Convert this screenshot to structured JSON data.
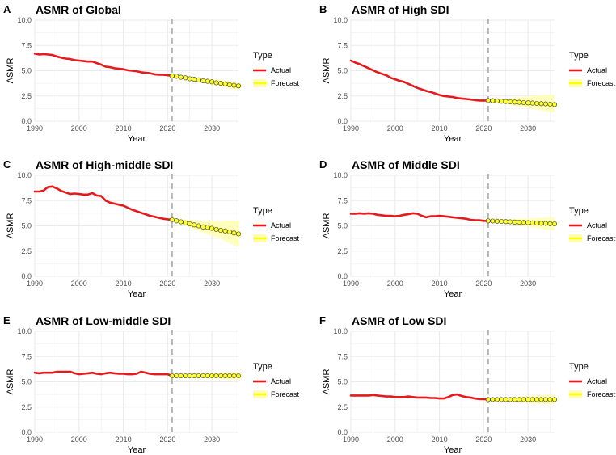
{
  "chart_data": [
    {
      "letter": "A",
      "title": "ASMR of Global",
      "type": "line",
      "xlabel": "Year",
      "ylabel": "ASMR",
      "xlim": [
        1990,
        2036
      ],
      "ylim": [
        0,
        10
      ],
      "xticks": [
        1990,
        2000,
        2010,
        2020,
        2030
      ],
      "yticks": [
        "0.0",
        "2.5",
        "5.0",
        "7.5",
        "10.0"
      ],
      "cutoff_year": 2021,
      "legend_title": "Type",
      "legend": [
        "Actual",
        "Forecast"
      ],
      "actual": {
        "x": [
          1990,
          1991,
          1992,
          1993,
          1994,
          1995,
          1996,
          1997,
          1998,
          1999,
          2000,
          2001,
          2002,
          2003,
          2004,
          2005,
          2006,
          2007,
          2008,
          2009,
          2010,
          2011,
          2012,
          2013,
          2014,
          2015,
          2016,
          2017,
          2018,
          2019,
          2020,
          2021
        ],
        "y": [
          6.7,
          6.6,
          6.65,
          6.6,
          6.55,
          6.4,
          6.3,
          6.2,
          6.15,
          6.05,
          6.0,
          5.95,
          5.9,
          5.9,
          5.75,
          5.6,
          5.4,
          5.35,
          5.25,
          5.2,
          5.15,
          5.05,
          5.0,
          4.95,
          4.85,
          4.8,
          4.75,
          4.65,
          4.6,
          4.6,
          4.55,
          4.5
        ]
      },
      "forecast": {
        "x": [
          2021,
          2022,
          2023,
          2024,
          2025,
          2026,
          2027,
          2028,
          2029,
          2030,
          2031,
          2032,
          2033,
          2034,
          2035,
          2036
        ],
        "y": [
          4.5,
          4.45,
          4.35,
          4.3,
          4.2,
          4.15,
          4.1,
          4.0,
          3.95,
          3.9,
          3.8,
          3.75,
          3.7,
          3.6,
          3.55,
          3.5
        ],
        "lower": [
          4.45,
          4.35,
          4.25,
          4.15,
          4.05,
          3.95,
          3.9,
          3.8,
          3.7,
          3.6,
          3.5,
          3.45,
          3.35,
          3.25,
          3.15,
          3.1
        ],
        "upper": [
          4.55,
          4.55,
          4.5,
          4.45,
          4.4,
          4.35,
          4.3,
          4.25,
          4.2,
          4.15,
          4.1,
          4.05,
          4.0,
          3.95,
          3.9,
          3.85
        ]
      }
    },
    {
      "letter": "B",
      "title": "ASMR of High SDI",
      "type": "line",
      "xlabel": "Year",
      "ylabel": "ASMR",
      "xlim": [
        1990,
        2036
      ],
      "ylim": [
        0,
        10
      ],
      "xticks": [
        1990,
        2000,
        2010,
        2020,
        2030
      ],
      "yticks": [
        "0.0",
        "2.5",
        "5.0",
        "7.5",
        "10.0"
      ],
      "cutoff_year": 2021,
      "legend_title": "Type",
      "legend": [
        "Actual",
        "Forecast"
      ],
      "actual": {
        "x": [
          1990,
          1991,
          1992,
          1993,
          1994,
          1995,
          1996,
          1997,
          1998,
          1999,
          2000,
          2001,
          2002,
          2003,
          2004,
          2005,
          2006,
          2007,
          2008,
          2009,
          2010,
          2011,
          2012,
          2013,
          2014,
          2015,
          2016,
          2017,
          2018,
          2019,
          2020,
          2021
        ],
        "y": [
          6.0,
          5.8,
          5.65,
          5.45,
          5.25,
          5.05,
          4.85,
          4.7,
          4.55,
          4.3,
          4.15,
          4.0,
          3.9,
          3.7,
          3.5,
          3.3,
          3.15,
          3.0,
          2.9,
          2.75,
          2.6,
          2.5,
          2.45,
          2.4,
          2.3,
          2.25,
          2.2,
          2.15,
          2.1,
          2.05,
          2.05,
          2.05
        ]
      },
      "forecast": {
        "x": [
          2021,
          2022,
          2023,
          2024,
          2025,
          2026,
          2027,
          2028,
          2029,
          2030,
          2031,
          2032,
          2033,
          2034,
          2035,
          2036
        ],
        "y": [
          2.05,
          2.03,
          2.0,
          1.98,
          1.95,
          1.92,
          1.9,
          1.87,
          1.84,
          1.82,
          1.79,
          1.76,
          1.74,
          1.71,
          1.68,
          1.65
        ],
        "lower": [
          2.0,
          1.9,
          1.85,
          1.75,
          1.68,
          1.6,
          1.52,
          1.45,
          1.38,
          1.3,
          1.22,
          1.15,
          1.08,
          1.0,
          0.92,
          0.85
        ],
        "upper": [
          2.1,
          2.15,
          2.2,
          2.22,
          2.25,
          2.3,
          2.35,
          2.38,
          2.42,
          2.46,
          2.5,
          2.53,
          2.57,
          2.6,
          2.64,
          2.68
        ]
      }
    },
    {
      "letter": "C",
      "title": "ASMR of High-middle SDI",
      "type": "line",
      "xlabel": "Year",
      "ylabel": "ASMR",
      "xlim": [
        1990,
        2036
      ],
      "ylim": [
        0,
        10
      ],
      "xticks": [
        1990,
        2000,
        2010,
        2020,
        2030
      ],
      "yticks": [
        "0.0",
        "2.5",
        "5.0",
        "7.5",
        "10.0"
      ],
      "cutoff_year": 2021,
      "legend_title": "Type",
      "legend": [
        "Actual",
        "Forecast"
      ],
      "actual": {
        "x": [
          1990,
          1991,
          1992,
          1993,
          1994,
          1995,
          1996,
          1997,
          1998,
          1999,
          2000,
          2001,
          2002,
          2003,
          2004,
          2005,
          2006,
          2007,
          2008,
          2009,
          2010,
          2011,
          2012,
          2013,
          2014,
          2015,
          2016,
          2017,
          2018,
          2019,
          2020,
          2021
        ],
        "y": [
          8.4,
          8.4,
          8.5,
          8.85,
          8.9,
          8.7,
          8.45,
          8.3,
          8.15,
          8.2,
          8.15,
          8.1,
          8.1,
          8.25,
          8.0,
          7.95,
          7.5,
          7.3,
          7.2,
          7.1,
          7.0,
          6.8,
          6.6,
          6.45,
          6.3,
          6.15,
          6.0,
          5.9,
          5.8,
          5.7,
          5.65,
          5.6
        ]
      },
      "forecast": {
        "x": [
          2021,
          2022,
          2023,
          2024,
          2025,
          2026,
          2027,
          2028,
          2029,
          2030,
          2031,
          2032,
          2033,
          2034,
          2035,
          2036
        ],
        "y": [
          5.6,
          5.5,
          5.4,
          5.3,
          5.2,
          5.1,
          5.0,
          4.9,
          4.85,
          4.75,
          4.65,
          4.55,
          4.5,
          4.4,
          4.3,
          4.2
        ],
        "lower": [
          5.5,
          5.3,
          5.15,
          5.0,
          4.8,
          4.65,
          4.5,
          4.35,
          4.2,
          4.0,
          3.85,
          3.7,
          3.5,
          3.3,
          3.1,
          2.9
        ],
        "upper": [
          5.7,
          5.7,
          5.65,
          5.6,
          5.6,
          5.55,
          5.5,
          5.5,
          5.5,
          5.5,
          5.45,
          5.45,
          5.5,
          5.5,
          5.5,
          5.55
        ]
      }
    },
    {
      "letter": "D",
      "title": "ASMR of Middle SDI",
      "type": "line",
      "xlabel": "Year",
      "ylabel": "ASMR",
      "xlim": [
        1990,
        2036
      ],
      "ylim": [
        0,
        10
      ],
      "xticks": [
        1990,
        2000,
        2010,
        2020,
        2030
      ],
      "yticks": [
        "0.0",
        "2.5",
        "5.0",
        "7.5",
        "10.0"
      ],
      "cutoff_year": 2021,
      "legend_title": "Type",
      "legend": [
        "Actual",
        "Forecast"
      ],
      "actual": {
        "x": [
          1990,
          1991,
          1992,
          1993,
          1994,
          1995,
          1996,
          1997,
          1998,
          1999,
          2000,
          2001,
          2002,
          2003,
          2004,
          2005,
          2006,
          2007,
          2008,
          2009,
          2010,
          2011,
          2012,
          2013,
          2014,
          2015,
          2016,
          2017,
          2018,
          2019,
          2020,
          2021
        ],
        "y": [
          6.2,
          6.2,
          6.25,
          6.2,
          6.25,
          6.2,
          6.1,
          6.05,
          6.0,
          6.0,
          5.95,
          6.0,
          6.1,
          6.15,
          6.25,
          6.2,
          6.0,
          5.85,
          5.95,
          5.95,
          6.0,
          5.95,
          5.9,
          5.85,
          5.8,
          5.75,
          5.7,
          5.6,
          5.55,
          5.55,
          5.5,
          5.5
        ]
      },
      "forecast": {
        "x": [
          2021,
          2022,
          2023,
          2024,
          2025,
          2026,
          2027,
          2028,
          2029,
          2030,
          2031,
          2032,
          2033,
          2034,
          2035,
          2036
        ],
        "y": [
          5.5,
          5.48,
          5.46,
          5.44,
          5.42,
          5.4,
          5.38,
          5.36,
          5.34,
          5.32,
          5.3,
          5.28,
          5.26,
          5.24,
          5.22,
          5.2
        ],
        "lower": [
          5.45,
          5.38,
          5.32,
          5.26,
          5.2,
          5.14,
          5.08,
          5.02,
          4.96,
          4.9,
          4.84,
          4.78,
          4.72,
          4.66,
          4.6,
          4.55
        ],
        "upper": [
          5.55,
          5.58,
          5.6,
          5.62,
          5.64,
          5.66,
          5.68,
          5.7,
          5.72,
          5.74,
          5.76,
          5.78,
          5.8,
          5.82,
          5.84,
          5.85
        ]
      }
    },
    {
      "letter": "E",
      "title": "ASMR of Low-middle SDI",
      "type": "line",
      "xlabel": "Year",
      "ylabel": "ASMR",
      "xlim": [
        1990,
        2036
      ],
      "ylim": [
        0,
        10
      ],
      "xticks": [
        1990,
        2000,
        2010,
        2020,
        2030
      ],
      "yticks": [
        "0.0",
        "2.5",
        "5.0",
        "7.5",
        "10.0"
      ],
      "cutoff_year": 2021,
      "legend_title": "Type",
      "legend": [
        "Actual",
        "Forecast"
      ],
      "actual": {
        "x": [
          1990,
          1991,
          1992,
          1993,
          1994,
          1995,
          1996,
          1997,
          1998,
          1999,
          2000,
          2001,
          2002,
          2003,
          2004,
          2005,
          2006,
          2007,
          2008,
          2009,
          2010,
          2011,
          2012,
          2013,
          2014,
          2015,
          2016,
          2017,
          2018,
          2019,
          2020,
          2021
        ],
        "y": [
          5.9,
          5.85,
          5.9,
          5.9,
          5.9,
          6.0,
          6.0,
          6.0,
          6.0,
          5.85,
          5.75,
          5.8,
          5.85,
          5.9,
          5.8,
          5.75,
          5.85,
          5.9,
          5.85,
          5.8,
          5.8,
          5.75,
          5.75,
          5.8,
          6.0,
          5.9,
          5.8,
          5.75,
          5.75,
          5.75,
          5.75,
          5.6
        ]
      },
      "forecast": {
        "x": [
          2021,
          2022,
          2023,
          2024,
          2025,
          2026,
          2027,
          2028,
          2029,
          2030,
          2031,
          2032,
          2033,
          2034,
          2035,
          2036
        ],
        "y": [
          5.6,
          5.6,
          5.6,
          5.6,
          5.6,
          5.6,
          5.6,
          5.6,
          5.6,
          5.6,
          5.6,
          5.6,
          5.6,
          5.6,
          5.6,
          5.6
        ],
        "lower": [
          5.55,
          5.5,
          5.48,
          5.45,
          5.42,
          5.4,
          5.38,
          5.36,
          5.34,
          5.32,
          5.3,
          5.28,
          5.26,
          5.24,
          5.22,
          5.2
        ],
        "upper": [
          5.65,
          5.7,
          5.72,
          5.75,
          5.78,
          5.8,
          5.82,
          5.84,
          5.86,
          5.88,
          5.9,
          5.92,
          5.94,
          5.96,
          5.98,
          6.0
        ]
      }
    },
    {
      "letter": "F",
      "title": "ASMR of Low SDI",
      "type": "line",
      "xlabel": "Year",
      "ylabel": "ASMR",
      "xlim": [
        1990,
        2036
      ],
      "ylim": [
        0,
        10
      ],
      "xticks": [
        1990,
        2000,
        2010,
        2020,
        2030
      ],
      "yticks": [
        "0.0",
        "2.5",
        "5.0",
        "7.5",
        "10.0"
      ],
      "cutoff_year": 2021,
      "legend_title": "Type",
      "legend": [
        "Actual",
        "Forecast"
      ],
      "actual": {
        "x": [
          1990,
          1991,
          1992,
          1993,
          1994,
          1995,
          1996,
          1997,
          1998,
          1999,
          2000,
          2001,
          2002,
          2003,
          2004,
          2005,
          2006,
          2007,
          2008,
          2009,
          2010,
          2011,
          2012,
          2013,
          2014,
          2015,
          2016,
          2017,
          2018,
          2019,
          2020,
          2021
        ],
        "y": [
          3.65,
          3.65,
          3.65,
          3.65,
          3.65,
          3.7,
          3.65,
          3.6,
          3.55,
          3.55,
          3.5,
          3.5,
          3.5,
          3.55,
          3.5,
          3.45,
          3.45,
          3.45,
          3.4,
          3.4,
          3.35,
          3.35,
          3.5,
          3.7,
          3.75,
          3.6,
          3.5,
          3.45,
          3.35,
          3.3,
          3.3,
          3.25
        ]
      },
      "forecast": {
        "x": [
          2021,
          2022,
          2023,
          2024,
          2025,
          2026,
          2027,
          2028,
          2029,
          2030,
          2031,
          2032,
          2033,
          2034,
          2035,
          2036
        ],
        "y": [
          3.25,
          3.25,
          3.25,
          3.25,
          3.25,
          3.25,
          3.25,
          3.25,
          3.25,
          3.25,
          3.25,
          3.25,
          3.25,
          3.25,
          3.25,
          3.25
        ],
        "lower": [
          3.2,
          3.15,
          3.1,
          3.07,
          3.04,
          3.01,
          2.98,
          2.95,
          2.93,
          2.9,
          2.88,
          2.86,
          2.84,
          2.82,
          2.8,
          2.78
        ],
        "upper": [
          3.3,
          3.35,
          3.4,
          3.43,
          3.46,
          3.49,
          3.52,
          3.55,
          3.57,
          3.6,
          3.62,
          3.64,
          3.66,
          3.68,
          3.7,
          3.72
        ]
      }
    }
  ],
  "colors": {
    "actual_line": "#e41a1c",
    "forecast_line": "#ffff00",
    "forecast_point_fill": "#ffff33",
    "forecast_point_stroke": "#4d4d1a",
    "ribbon": "#ffffb3",
    "cutoff_line": "#b3b3b3",
    "grid": "#ebebeb"
  }
}
